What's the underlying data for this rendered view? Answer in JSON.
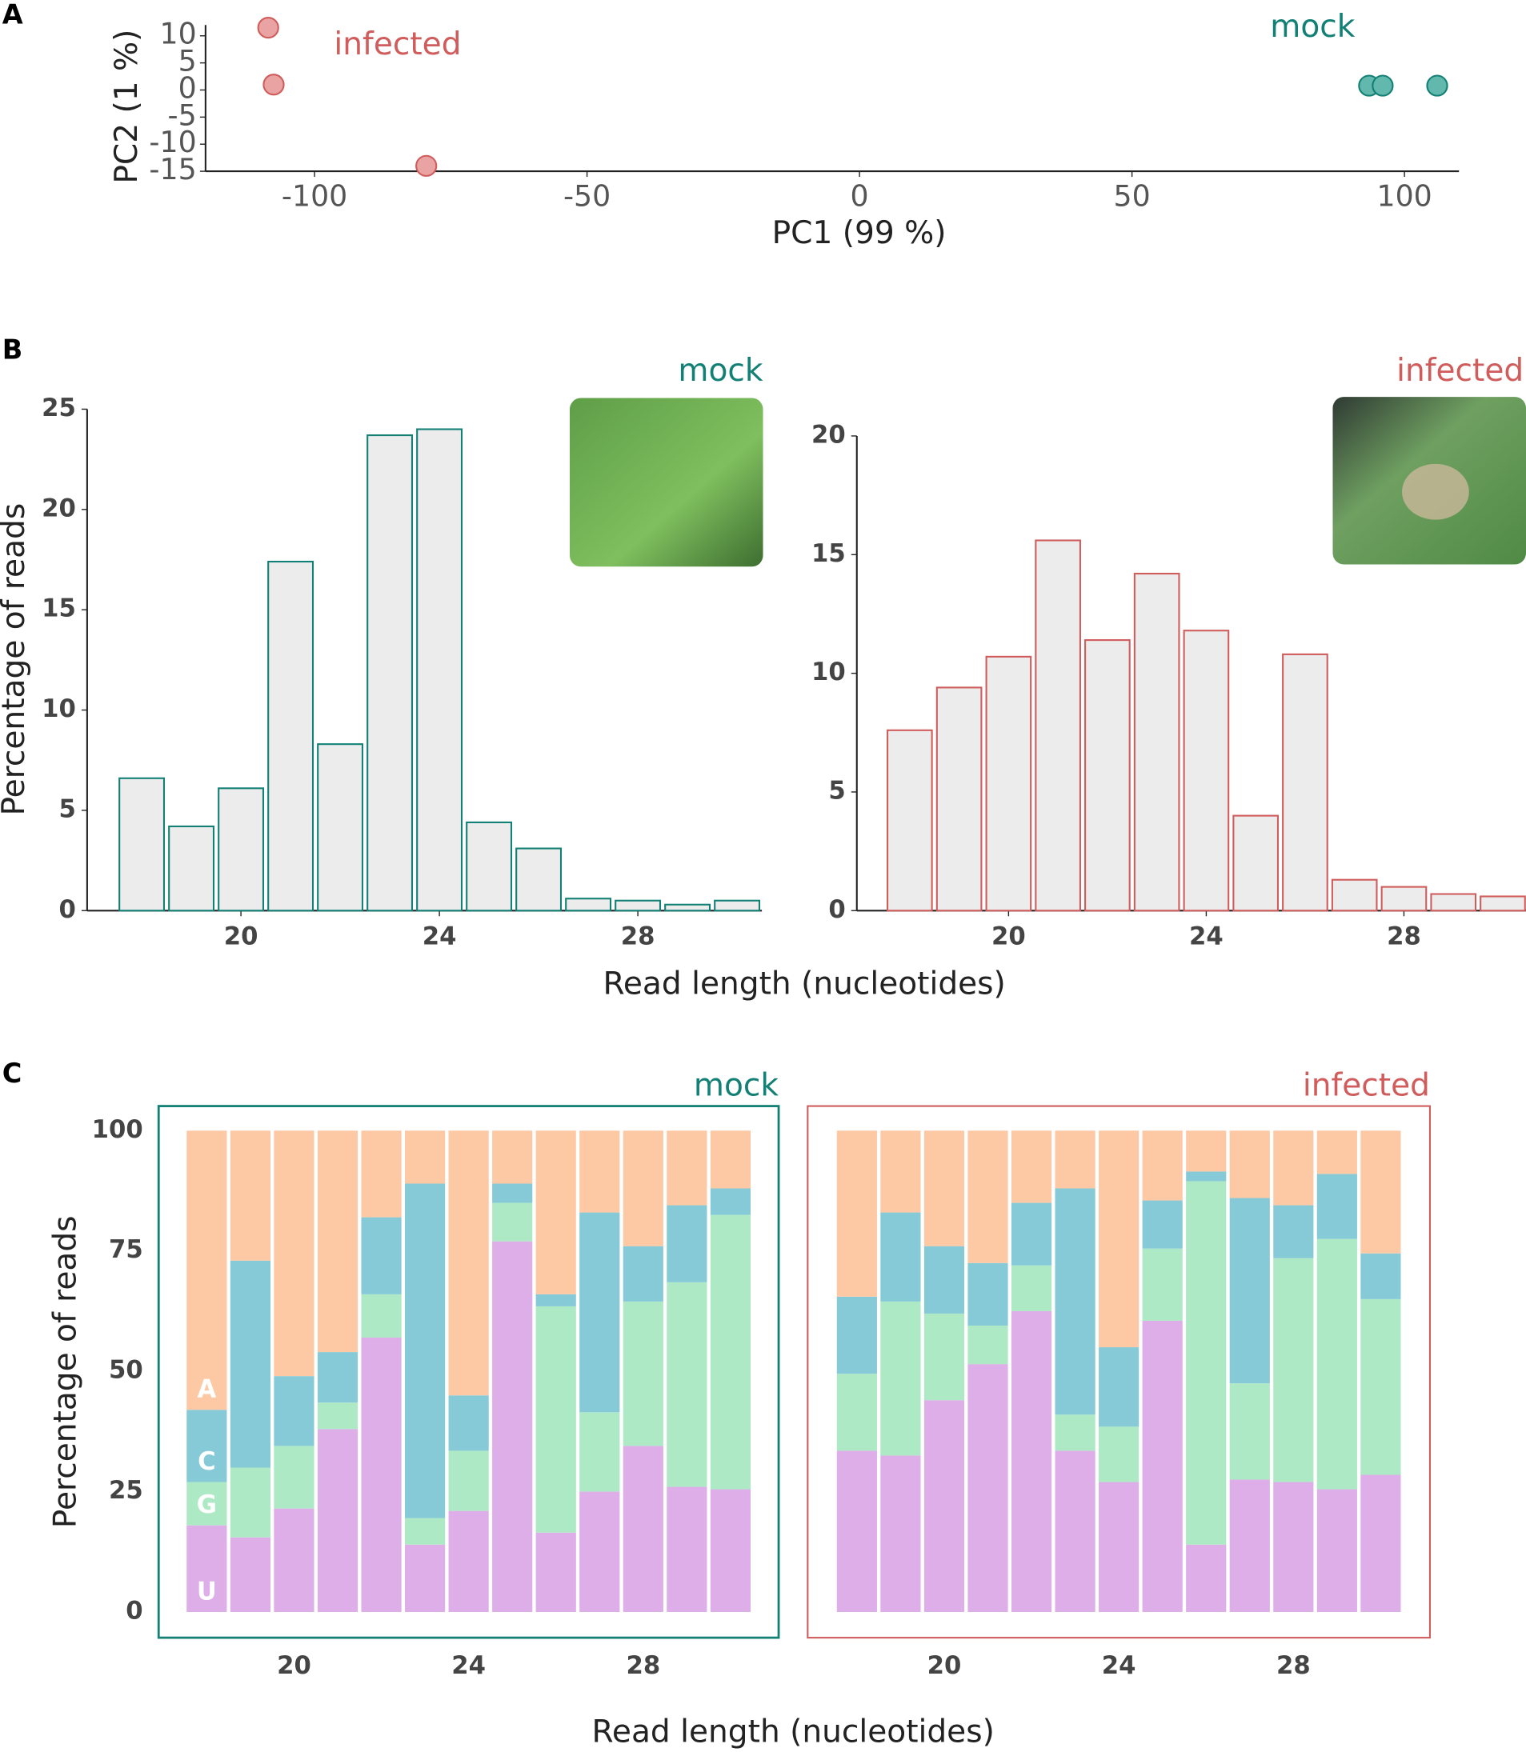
{
  "panel_labels": [
    "A",
    "B",
    "C"
  ],
  "chart_data": [
    {
      "type": "scatter",
      "xlabel": "PC1 (99 %)",
      "ylabel": "PC2 (1 %)",
      "xlim": [
        -120,
        110
      ],
      "ylim": [
        -15,
        12
      ],
      "xticks": [
        -100,
        -50,
        0,
        50,
        100
      ],
      "yticks": [
        10,
        5,
        0,
        -5,
        -10,
        -15
      ],
      "series": [
        {
          "name": "infected",
          "color": "#eaa3a3",
          "edgecolor": "#d05c5c",
          "x": [
            -108.5,
            -107.5,
            -79.5
          ],
          "values": [
            11.5,
            1,
            -14
          ]
        },
        {
          "name": "mock",
          "color": "#62b8ad",
          "edgecolor": "#138075",
          "x": [
            93.5,
            96,
            106
          ],
          "values": [
            0.8,
            0.8,
            0.8
          ]
        }
      ]
    },
    {
      "type": "bar",
      "title": "mock",
      "title_color": "#138075",
      "ylabel": "Percentage of reads",
      "xlabel": "Read length (nucleotides)",
      "color": "#ececec",
      "edgecolor": "#138075",
      "x": [
        18,
        19,
        20,
        21,
        22,
        23,
        24,
        25,
        26,
        27,
        28,
        29,
        30
      ],
      "values": [
        6.6,
        4.2,
        6.1,
        17.4,
        8.3,
        23.7,
        24.0,
        4.4,
        3.1,
        0.6,
        0.5,
        0.3,
        0.5
      ],
      "xlim": [
        16.9,
        30.5
      ],
      "ylim": [
        0,
        25
      ],
      "xticks": [
        20,
        24,
        28
      ],
      "yticks": [
        0,
        5,
        10,
        15,
        20,
        25
      ]
    },
    {
      "type": "bar",
      "title": "infected",
      "title_color": "#d05c5c",
      "color": "#ececec",
      "edgecolor": "#d05c5c",
      "x": [
        18,
        19,
        20,
        21,
        22,
        23,
        24,
        25,
        26,
        27,
        28,
        29,
        30
      ],
      "values": [
        7.6,
        9.4,
        10.7,
        15.6,
        11.4,
        14.2,
        11.8,
        4.0,
        10.8,
        1.3,
        1.0,
        0.7,
        0.6
      ],
      "xlim": [
        16.93,
        30.47
      ],
      "ylim": [
        0,
        20
      ],
      "xticks": [
        20,
        24,
        28
      ],
      "yticks": [
        0,
        5,
        10,
        15,
        20
      ]
    },
    {
      "type": "stacked-bar",
      "title": "mock",
      "title_color": "#138075",
      "ylabel": "Percentage of reads",
      "xlabel": "Read length (nucleotides)",
      "x": [
        18,
        19,
        20,
        21,
        22,
        23,
        24,
        25,
        26,
        27,
        28,
        29,
        30
      ],
      "xlim": [
        17,
        31
      ],
      "ylim": [
        0,
        100
      ],
      "xticks": [
        20,
        24,
        28
      ],
      "yticks": [
        0,
        25,
        50,
        75,
        100
      ],
      "series": [
        {
          "name": "U",
          "color": "#deaee9",
          "values": [
            18,
            15.5,
            21.5,
            38,
            57,
            14,
            21,
            77,
            16.5,
            25,
            34.5,
            26,
            25.5
          ]
        },
        {
          "name": "G",
          "color": "#aee9c5",
          "values": [
            9,
            14.5,
            13,
            5.5,
            9,
            5.5,
            12.5,
            8,
            47,
            16.5,
            30,
            42.5,
            57
          ]
        },
        {
          "name": "C",
          "color": "#86cad8",
          "values": [
            15,
            43,
            14.5,
            10.5,
            16,
            69.5,
            11.5,
            4,
            2.5,
            41.5,
            11.5,
            16,
            5.5
          ]
        },
        {
          "name": "A",
          "color": "#fdc9a5",
          "values": [
            58,
            27,
            51,
            46,
            18,
            11,
            55,
            11,
            34,
            17,
            24,
            15.5,
            12
          ]
        }
      ]
    },
    {
      "type": "stacked-bar",
      "title": "infected",
      "title_color": "#d05c5c",
      "x": [
        18,
        19,
        20,
        21,
        22,
        23,
        24,
        25,
        26,
        27,
        28,
        29,
        30
      ],
      "xlim": [
        17,
        31
      ],
      "ylim": [
        0,
        100
      ],
      "xticks": [
        20,
        24,
        28
      ],
      "series": [
        {
          "color": "#deaee9",
          "values": [
            33.5,
            32.5,
            44,
            51.5,
            62.5,
            33.5,
            27,
            60.5,
            14,
            27.5,
            27,
            25.5,
            28.5
          ]
        },
        {
          "color": "#aee9c5",
          "values": [
            16,
            32,
            18,
            8,
            9.5,
            7.5,
            11.5,
            15,
            75.5,
            20,
            46.5,
            52,
            36.5
          ]
        },
        {
          "color": "#86cad8",
          "values": [
            16,
            18.5,
            14,
            13,
            13,
            47,
            16.5,
            10,
            2,
            38.5,
            11,
            13.5,
            9.5
          ]
        },
        {
          "color": "#fdc9a5",
          "values": [
            34.5,
            17,
            24,
            27.5,
            15,
            12,
            45,
            14.5,
            8.5,
            14,
            15.5,
            9,
            25.5
          ]
        }
      ]
    }
  ]
}
